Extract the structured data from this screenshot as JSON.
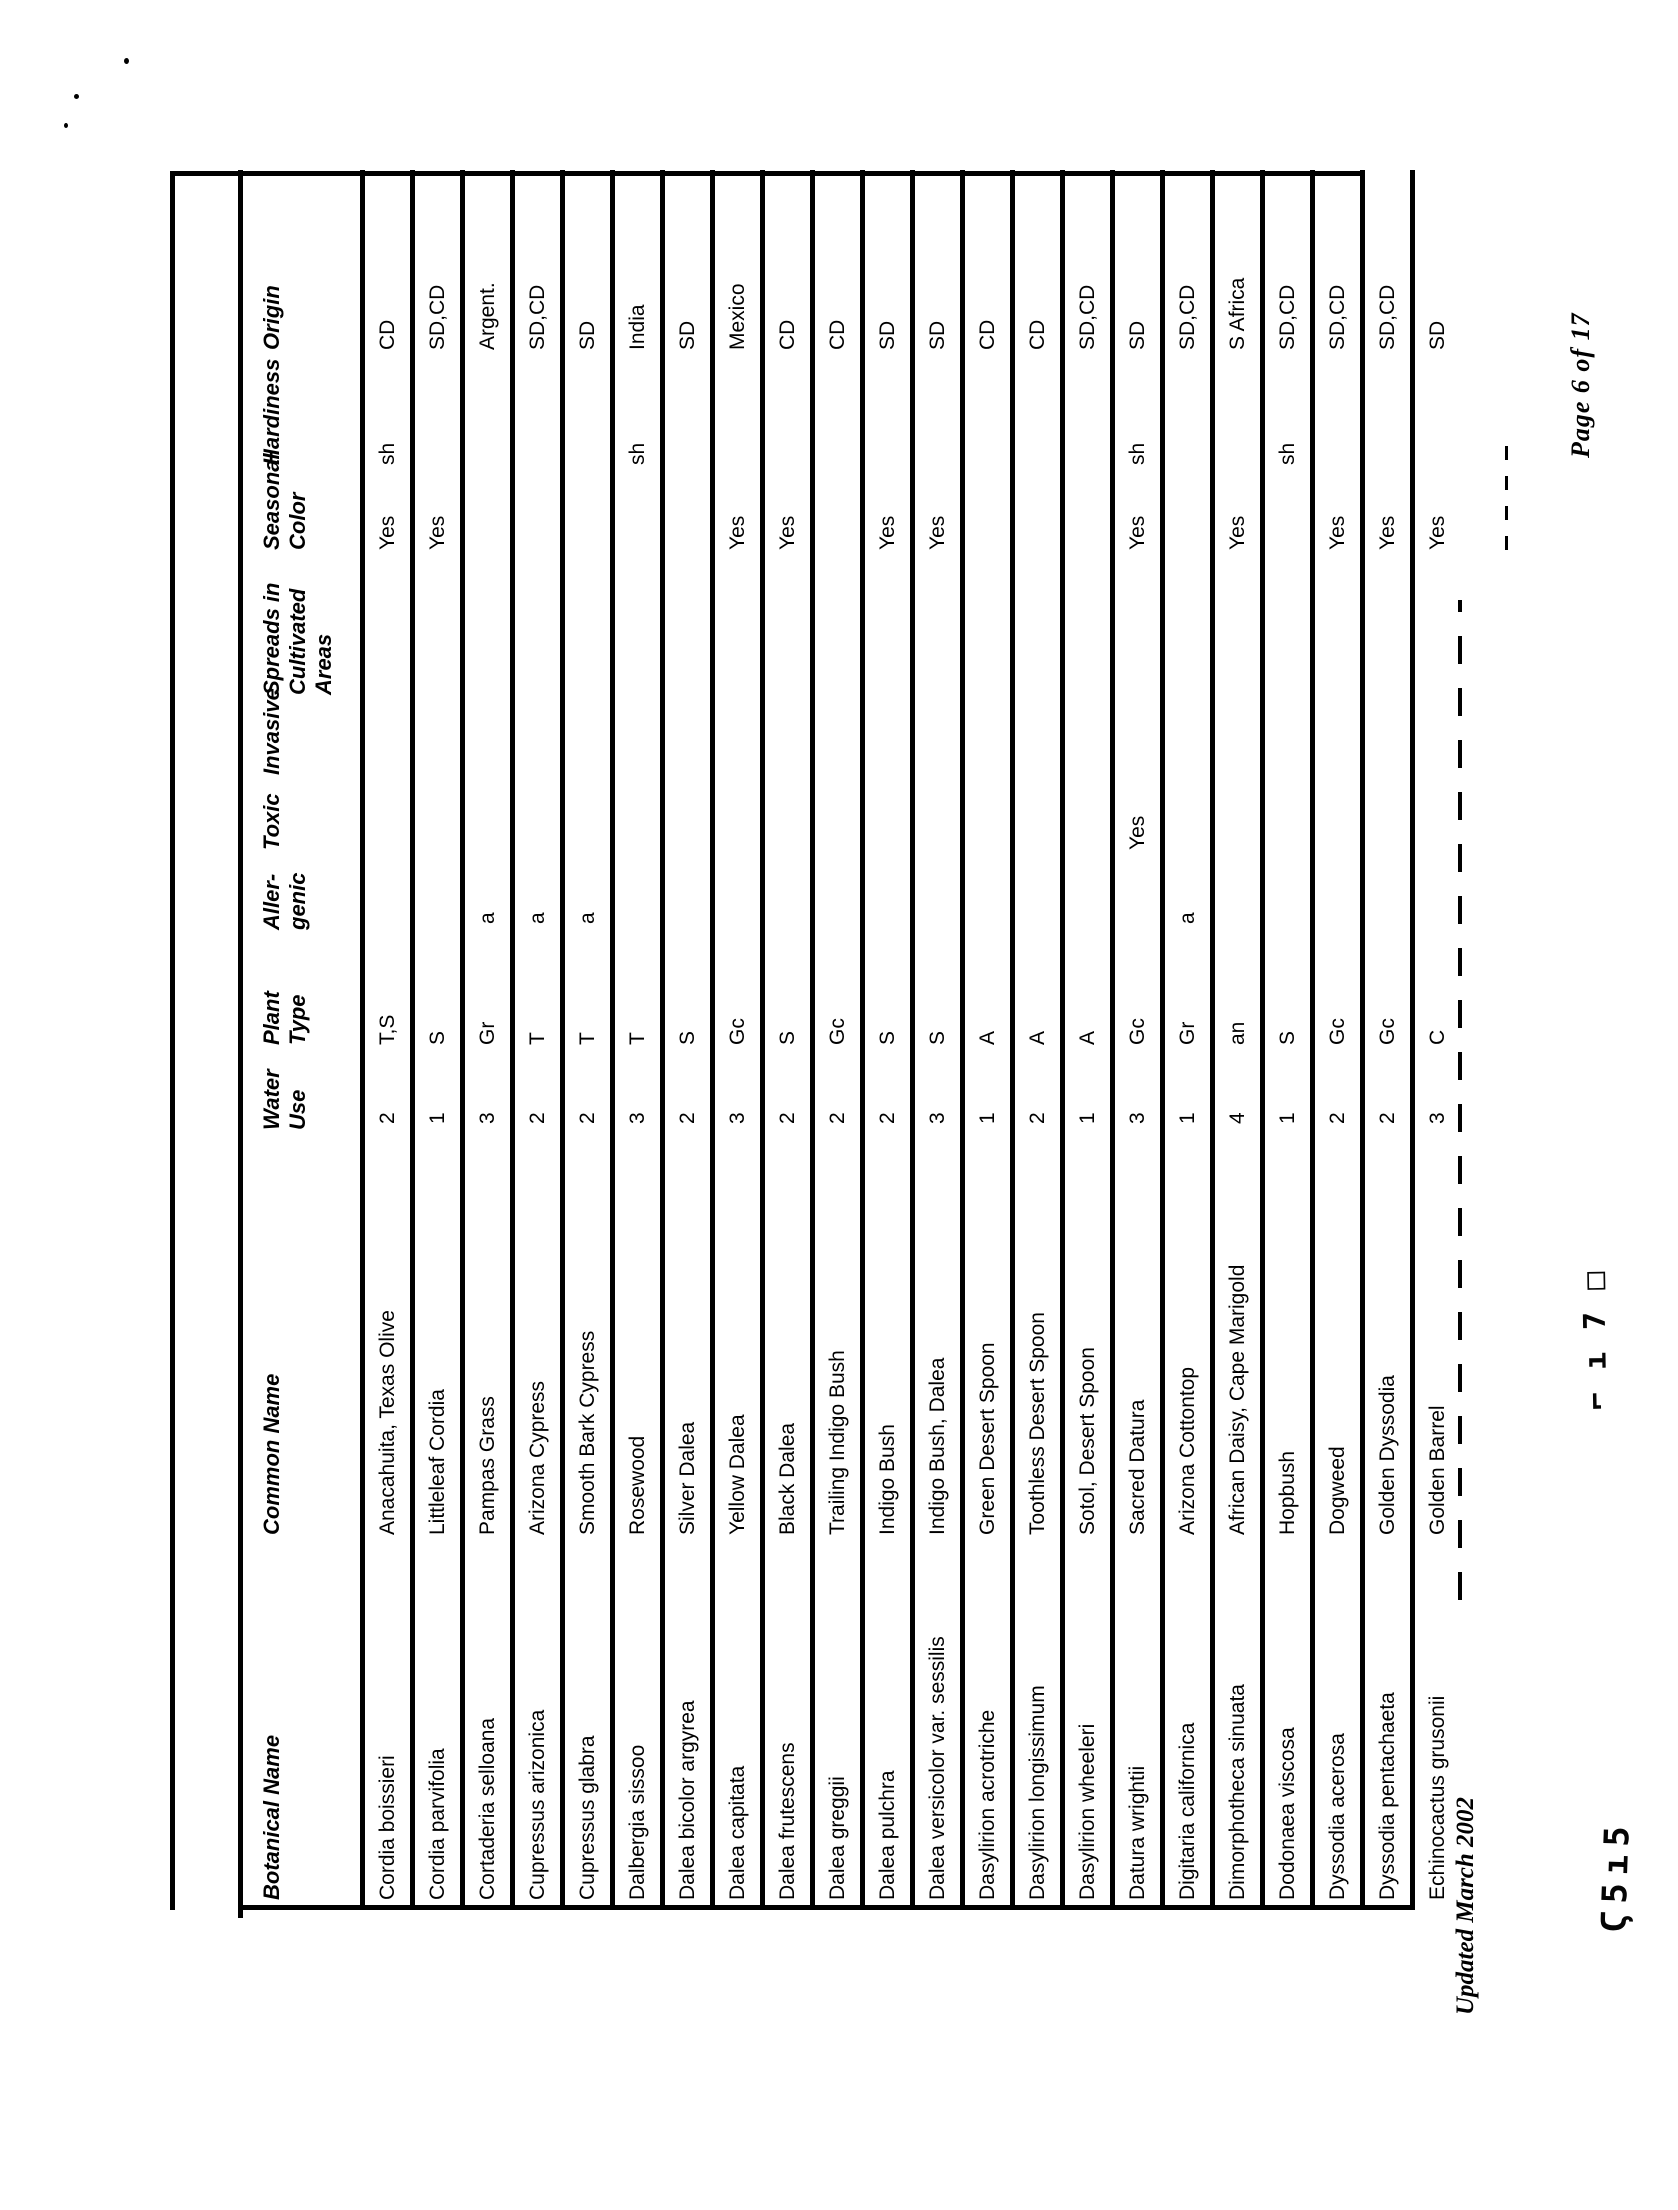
{
  "page": {
    "background": "#ffffff",
    "ink": "#000000",
    "footer_left": "Updated March 2002",
    "footer_right": "Page 6 of 17"
  },
  "table": {
    "columns": [
      {
        "key": "botanical",
        "label": "Botanical Name"
      },
      {
        "key": "common",
        "label": "Common Name"
      },
      {
        "key": "water",
        "label": "Water\nUse"
      },
      {
        "key": "plant",
        "label": "Plant\nType"
      },
      {
        "key": "allergenic",
        "label": "Aller-\ngenic"
      },
      {
        "key": "toxic",
        "label": "Toxic"
      },
      {
        "key": "invasive",
        "label": "Invasive"
      },
      {
        "key": "spreads",
        "label": "Spreads in\nCultivated\nAreas"
      },
      {
        "key": "seasonal",
        "label": "Seasonal\nColor"
      },
      {
        "key": "hardiness",
        "label": "Hardiness"
      },
      {
        "key": "origin",
        "label": "Origin"
      }
    ],
    "rows": [
      {
        "botanical": "Cordia boissieri",
        "common": "Anacahuita, Texas Olive",
        "water": "2",
        "plant": "T,S",
        "allergenic": "",
        "toxic": "",
        "invasive": "",
        "spreads": "",
        "seasonal": "Yes",
        "hardiness": "sh",
        "origin": "CD"
      },
      {
        "botanical": "Cordia parvifolia",
        "common": "Littleleaf Cordia",
        "water": "1",
        "plant": "S",
        "allergenic": "",
        "toxic": "",
        "invasive": "",
        "spreads": "",
        "seasonal": "Yes",
        "hardiness": "",
        "origin": "SD,CD"
      },
      {
        "botanical": "Cortaderia selloana",
        "common": "Pampas Grass",
        "water": "3",
        "plant": "Gr",
        "allergenic": "a",
        "toxic": "",
        "invasive": "",
        "spreads": "",
        "seasonal": "",
        "hardiness": "",
        "origin": "Argent."
      },
      {
        "botanical": "Cupressus arizonica",
        "common": "Arizona Cypress",
        "water": "2",
        "plant": "T",
        "allergenic": "a",
        "toxic": "",
        "invasive": "",
        "spreads": "",
        "seasonal": "",
        "hardiness": "",
        "origin": "SD,CD"
      },
      {
        "botanical": "Cupressus glabra",
        "common": "Smooth Bark Cypress",
        "water": "2",
        "plant": "T",
        "allergenic": "a",
        "toxic": "",
        "invasive": "",
        "spreads": "",
        "seasonal": "",
        "hardiness": "",
        "origin": "SD"
      },
      {
        "botanical": "Dalbergia sissoo",
        "common": "Rosewood",
        "water": "3",
        "plant": "T",
        "allergenic": "",
        "toxic": "",
        "invasive": "",
        "spreads": "",
        "seasonal": "",
        "hardiness": "sh",
        "origin": "India"
      },
      {
        "botanical": "Dalea bicolor argyrea",
        "common": "Silver Dalea",
        "water": "2",
        "plant": "S",
        "allergenic": "",
        "toxic": "",
        "invasive": "",
        "spreads": "",
        "seasonal": "",
        "hardiness": "",
        "origin": "SD"
      },
      {
        "botanical": "Dalea capitata",
        "common": "Yellow Dalea",
        "water": "3",
        "plant": "Gc",
        "allergenic": "",
        "toxic": "",
        "invasive": "",
        "spreads": "",
        "seasonal": "Yes",
        "hardiness": "",
        "origin": "Mexico"
      },
      {
        "botanical": "Dalea frutescens",
        "common": "Black Dalea",
        "water": "2",
        "plant": "S",
        "allergenic": "",
        "toxic": "",
        "invasive": "",
        "spreads": "",
        "seasonal": "Yes",
        "hardiness": "",
        "origin": "CD"
      },
      {
        "botanical": "Dalea greggii",
        "common": "Trailing Indigo Bush",
        "water": "2",
        "plant": "Gc",
        "allergenic": "",
        "toxic": "",
        "invasive": "",
        "spreads": "",
        "seasonal": "",
        "hardiness": "",
        "origin": "CD"
      },
      {
        "botanical": "Dalea pulchra",
        "common": "Indigo Bush",
        "water": "2",
        "plant": "S",
        "allergenic": "",
        "toxic": "",
        "invasive": "",
        "spreads": "",
        "seasonal": "Yes",
        "hardiness": "",
        "origin": "SD"
      },
      {
        "botanical": "Dalea versicolor var. sessilis",
        "common": "Indigo Bush, Dalea",
        "water": "3",
        "plant": "S",
        "allergenic": "",
        "toxic": "",
        "invasive": "",
        "spreads": "",
        "seasonal": "Yes",
        "hardiness": "",
        "origin": "SD"
      },
      {
        "botanical": "Dasylirion acrotriche",
        "common": "Green Desert Spoon",
        "water": "1",
        "plant": "A",
        "allergenic": "",
        "toxic": "",
        "invasive": "",
        "spreads": "",
        "seasonal": "",
        "hardiness": "",
        "origin": "CD"
      },
      {
        "botanical": "Dasylirion longissimum",
        "common": "Toothless Desert Spoon",
        "water": "2",
        "plant": "A",
        "allergenic": "",
        "toxic": "",
        "invasive": "",
        "spreads": "",
        "seasonal": "",
        "hardiness": "",
        "origin": "CD"
      },
      {
        "botanical": "Dasylirion wheeleri",
        "common": "Sotol, Desert Spoon",
        "water": "1",
        "plant": "A",
        "allergenic": "",
        "toxic": "",
        "invasive": "",
        "spreads": "",
        "seasonal": "",
        "hardiness": "",
        "origin": "SD,CD"
      },
      {
        "botanical": "Datura wrightii",
        "common": "Sacred Datura",
        "water": "3",
        "plant": "Gc",
        "allergenic": "",
        "toxic": "Yes",
        "invasive": "",
        "spreads": "",
        "seasonal": "Yes",
        "hardiness": "sh",
        "origin": "SD"
      },
      {
        "botanical": "Digitaria californica",
        "common": "Arizona Cottontop",
        "water": "1",
        "plant": "Gr",
        "allergenic": "a",
        "toxic": "",
        "invasive": "",
        "spreads": "",
        "seasonal": "",
        "hardiness": "",
        "origin": "SD,CD"
      },
      {
        "botanical": "Dimorphotheca sinuata",
        "common": "African Daisy, Cape Marigold",
        "water": "4",
        "plant": "an",
        "allergenic": "",
        "toxic": "",
        "invasive": "",
        "spreads": "",
        "seasonal": "Yes",
        "hardiness": "",
        "origin": "S Africa"
      },
      {
        "botanical": "Dodonaea viscosa",
        "common": "Hopbush",
        "water": "1",
        "plant": "S",
        "allergenic": "",
        "toxic": "",
        "invasive": "",
        "spreads": "",
        "seasonal": "",
        "hardiness": "sh",
        "origin": "SD,CD"
      },
      {
        "botanical": "Dyssodia acerosa",
        "common": "Dogweed",
        "water": "2",
        "plant": "Gc",
        "allergenic": "",
        "toxic": "",
        "invasive": "",
        "spreads": "",
        "seasonal": "Yes",
        "hardiness": "",
        "origin": "SD,CD"
      },
      {
        "botanical": "Dyssodia pentachaeta",
        "common": "Golden Dyssodia",
        "water": "2",
        "plant": "Gc",
        "allergenic": "",
        "toxic": "",
        "invasive": "",
        "spreads": "",
        "seasonal": "Yes",
        "hardiness": "",
        "origin": "SD,CD"
      },
      {
        "botanical": "Echinocactus grusonii",
        "common": "Golden Barrel",
        "water": "3",
        "plant": "C",
        "allergenic": "",
        "toxic": "",
        "invasive": "",
        "spreads": "",
        "seasonal": "Yes",
        "hardiness": "",
        "origin": "SD"
      }
    ]
  },
  "artifacts": {
    "stamp_left": "Ϛ5ı5",
    "stamp_center": "⌐ı7□"
  }
}
